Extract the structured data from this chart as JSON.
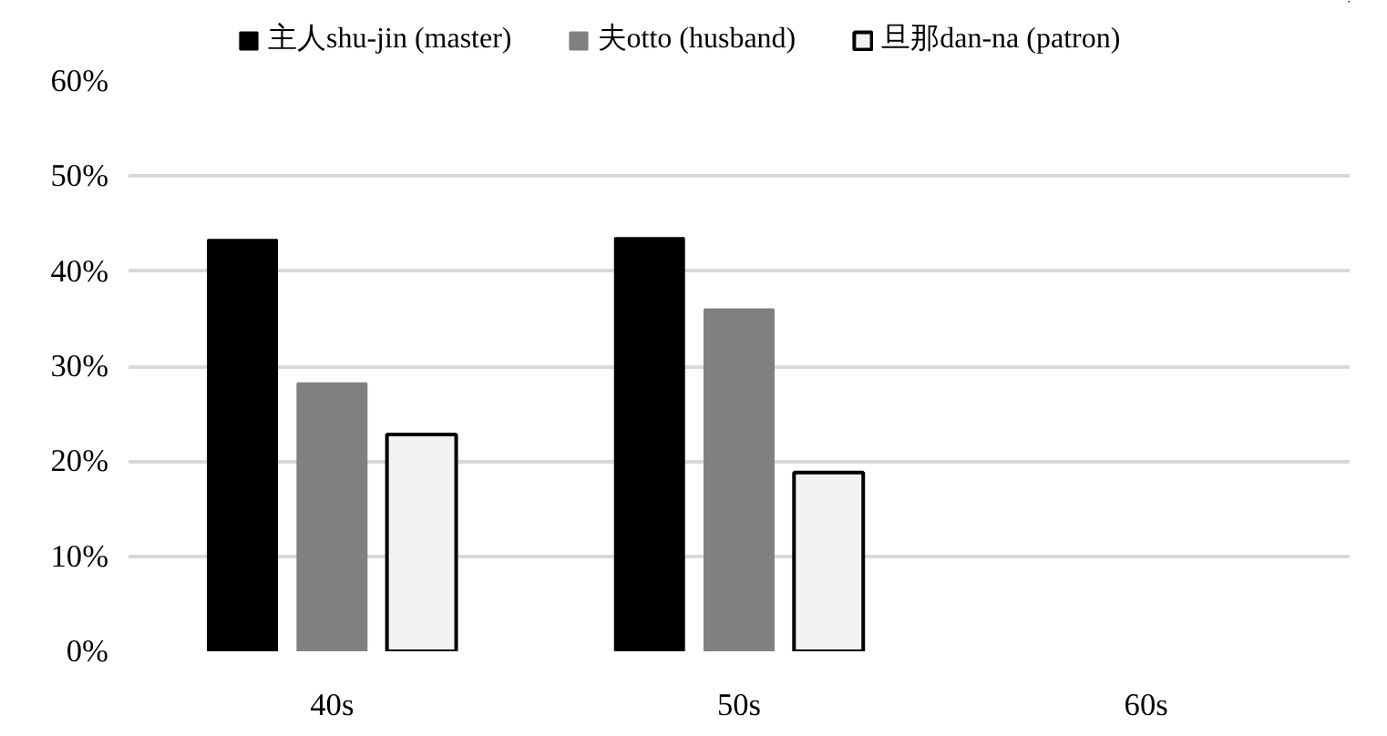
{
  "chart_data": {
    "type": "bar",
    "categories": [
      "40s",
      "50s",
      "60s"
    ],
    "series": [
      {
        "name": "主人shu-jin (master)",
        "color": "#000000",
        "values": [
          43.3,
          43.5,
          null
        ]
      },
      {
        "name": "夫otto (husband)",
        "color": "#808080",
        "values": [
          28.2,
          36.0,
          null
        ]
      },
      {
        "name": "旦那dan-na (patron)",
        "color": "#f2f2f2",
        "values": [
          22.8,
          18.8,
          null
        ]
      }
    ],
    "ylim": [
      0,
      60
    ],
    "yticks": [
      {
        "value": 0,
        "label": "0%"
      },
      {
        "value": 10,
        "label": "10%"
      },
      {
        "value": 20,
        "label": "20%"
      },
      {
        "value": 30,
        "label": "30%"
      },
      {
        "value": 40,
        "label": "40%"
      },
      {
        "value": 50,
        "label": "50%"
      },
      {
        "value": 60,
        "label": "60%"
      }
    ],
    "grid": "y",
    "legend": "top"
  }
}
